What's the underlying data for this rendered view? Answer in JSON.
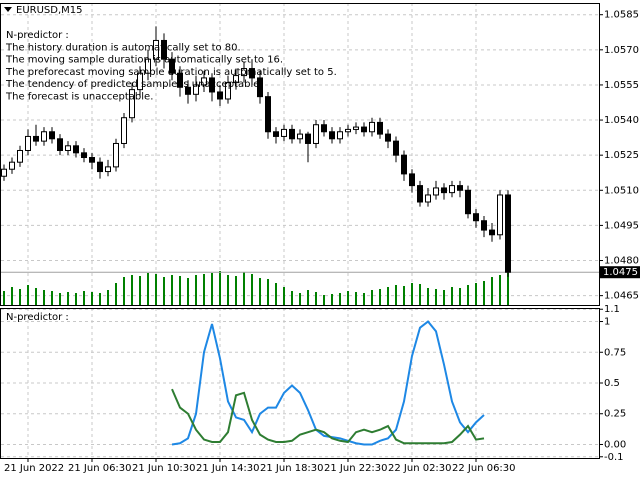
{
  "chart_data": [
    {
      "type": "candlestick",
      "title": "EURUSD,M15",
      "annotations": [
        "N-predictor :",
        "The history duration is automatically set to 80.",
        "The moving sample duration is automatically set to 16.",
        "The preforecast moving sample duration is automatically set to 5.",
        "The tendency of predicted sample is unacceptable.",
        "The forecast is unacceptable."
      ],
      "categories": [
        null,
        null,
        null,
        "21 Jun 2022",
        null,
        null,
        null,
        null,
        null,
        null,
        null,
        "21 Jun 06:30",
        null,
        null,
        null,
        null,
        null,
        null,
        null,
        "21 Jun 10:30",
        null,
        null,
        null,
        null,
        null,
        null,
        null,
        "21 Jun 14:30",
        null,
        null,
        null,
        null,
        null,
        null,
        null,
        "21 Jun 18:30",
        null,
        null,
        null,
        null,
        null,
        null,
        null,
        "21 Jun 22:30",
        null,
        null,
        null,
        null,
        null,
        null,
        null,
        "22 Jun 02:30",
        null,
        null,
        null,
        null,
        null,
        null,
        null,
        "22 Jun 06:30",
        null,
        null,
        null,
        null
      ],
      "open": [
        1.0516,
        1.0519,
        1.0522,
        1.0527,
        1.0533,
        1.0531,
        1.0535,
        1.0532,
        1.0527,
        1.0529,
        1.0526,
        1.0524,
        1.0522,
        1.0518,
        1.052,
        1.053,
        1.0541,
        1.0553,
        1.056,
        1.0566,
        1.0574,
        1.0566,
        1.056,
        1.0554,
        1.0551,
        1.0555,
        1.0558,
        1.0552,
        1.0549,
        1.0556,
        1.0559,
        1.0562,
        1.0558,
        1.055,
        1.0535,
        1.0533,
        1.0536,
        1.0532,
        1.0534,
        1.053,
        1.0538,
        1.0535,
        1.0532,
        1.0535,
        1.0536,
        1.0537,
        1.0535,
        1.0539,
        1.0534,
        1.0531,
        1.0525,
        1.0517,
        1.0512,
        1.0505,
        1.0508,
        1.0511,
        1.0509,
        1.0512,
        1.051,
        1.05,
        1.0497,
        1.0493,
        1.0491,
        1.0508
      ],
      "high": [
        1.0521,
        1.0524,
        1.0529,
        1.0536,
        1.0538,
        1.0537,
        1.0537,
        1.0534,
        1.0531,
        1.0531,
        1.0528,
        1.0526,
        1.0524,
        1.0523,
        1.0532,
        1.0543,
        1.0556,
        1.0563,
        1.057,
        1.058,
        1.0577,
        1.0569,
        1.0563,
        1.0557,
        1.0559,
        1.0561,
        1.056,
        1.0555,
        1.0559,
        1.0562,
        1.0565,
        1.0566,
        1.0561,
        1.0552,
        1.0537,
        1.0538,
        1.0538,
        1.0536,
        1.0535,
        1.054,
        1.054,
        1.0537,
        1.0537,
        1.0538,
        1.0539,
        1.0539,
        1.0541,
        1.0541,
        1.0536,
        1.0533,
        1.0527,
        1.0519,
        1.0514,
        1.0511,
        1.0514,
        1.0513,
        1.0514,
        1.0514,
        1.0512,
        1.0502,
        1.0499,
        1.0496,
        1.051,
        1.051
      ],
      "low": [
        1.0514,
        1.0517,
        1.052,
        1.0525,
        1.0529,
        1.0529,
        1.053,
        1.0525,
        1.0525,
        1.0524,
        1.0522,
        1.0519,
        1.0515,
        1.0516,
        1.0518,
        1.0528,
        1.0539,
        1.055,
        1.0557,
        1.0563,
        1.0562,
        1.0557,
        1.055,
        1.0547,
        1.0548,
        1.0552,
        1.0548,
        1.0546,
        1.0547,
        1.0553,
        1.0556,
        1.0555,
        1.0547,
        1.0532,
        1.053,
        1.0531,
        1.053,
        1.053,
        1.0522,
        1.0528,
        1.0533,
        1.053,
        1.053,
        1.0533,
        1.0534,
        1.0533,
        1.0533,
        1.0532,
        1.0528,
        1.0522,
        1.0514,
        1.0509,
        1.0503,
        1.0503,
        1.0506,
        1.0506,
        1.0507,
        1.0507,
        1.0498,
        1.0494,
        1.049,
        1.0488,
        1.0489,
        1.0473
      ],
      "close": [
        1.0519,
        1.0522,
        1.0527,
        1.0533,
        1.0531,
        1.0535,
        1.0532,
        1.0527,
        1.0529,
        1.0526,
        1.0524,
        1.0522,
        1.0518,
        1.052,
        1.053,
        1.0541,
        1.0553,
        1.056,
        1.0566,
        1.0574,
        1.0566,
        1.056,
        1.0554,
        1.0551,
        1.0555,
        1.0558,
        1.0552,
        1.0549,
        1.0556,
        1.0559,
        1.0562,
        1.0558,
        1.055,
        1.0535,
        1.0533,
        1.0536,
        1.0532,
        1.0534,
        1.053,
        1.0538,
        1.0535,
        1.0532,
        1.0535,
        1.0536,
        1.0537,
        1.0535,
        1.0539,
        1.0534,
        1.0531,
        1.0525,
        1.0517,
        1.0512,
        1.0505,
        1.0508,
        1.0511,
        1.0509,
        1.0512,
        1.051,
        1.05,
        1.0497,
        1.0493,
        1.0491,
        1.0508,
        1.0475
      ],
      "volumes": [
        14,
        18,
        16,
        20,
        17,
        15,
        14,
        12,
        13,
        12,
        14,
        13,
        12,
        15,
        22,
        28,
        30,
        29,
        32,
        31,
        28,
        30,
        29,
        27,
        30,
        31,
        32,
        34,
        30,
        29,
        33,
        31,
        27,
        26,
        22,
        18,
        14,
        12,
        15,
        13,
        10,
        11,
        12,
        14,
        13,
        12,
        15,
        16,
        18,
        20,
        19,
        22,
        21,
        17,
        16,
        15,
        18,
        17,
        20,
        22,
        24,
        28,
        30,
        36
      ],
      "volume_color": "#008000",
      "current_price": 1.0475,
      "ylim": [
        1.0461,
        1.059
      ],
      "yticks": [
        1.0585,
        {
          "value": 1.057,
          "label": "1.0570"
        },
        1.0555,
        {
          "value": 1.054,
          "label": "1.0540"
        },
        1.0525,
        {
          "value": 1.051,
          "label": "1.0510"
        },
        1.0495,
        {
          "value": 1.048,
          "label": "1.0480"
        },
        1.0465
      ],
      "grid": true
    },
    {
      "type": "line",
      "title": "N-predictor :",
      "series": [
        {
          "color": "#1e88e5",
          "values": [
            null,
            null,
            null,
            null,
            null,
            null,
            null,
            null,
            null,
            null,
            null,
            null,
            null,
            null,
            null,
            null,
            null,
            null,
            null,
            null,
            null,
            0.0,
            0.01,
            0.05,
            0.25,
            0.75,
            0.98,
            0.7,
            0.35,
            0.22,
            0.2,
            0.1,
            0.25,
            0.3,
            0.3,
            0.42,
            0.48,
            0.42,
            0.28,
            0.12,
            0.07,
            0.06,
            0.05,
            0.03,
            0.01,
            0.0,
            0.0,
            0.03,
            0.05,
            0.12,
            0.35,
            0.72,
            0.95,
            1.0,
            0.92,
            0.65,
            0.35,
            0.18,
            0.1,
            0.18,
            0.24,
            null,
            null,
            null
          ]
        },
        {
          "color": "#2e7d32",
          "values": [
            null,
            null,
            null,
            null,
            null,
            null,
            null,
            null,
            null,
            null,
            null,
            null,
            null,
            null,
            null,
            null,
            null,
            null,
            null,
            null,
            null,
            0.45,
            0.3,
            0.25,
            0.12,
            0.04,
            0.02,
            0.02,
            0.1,
            0.4,
            0.42,
            0.2,
            0.08,
            0.04,
            0.02,
            0.02,
            0.03,
            0.08,
            0.1,
            0.12,
            0.1,
            0.05,
            0.03,
            0.02,
            0.1,
            0.12,
            0.1,
            0.12,
            0.15,
            0.04,
            0.01,
            0.01,
            0.01,
            0.01,
            0.01,
            0.01,
            0.02,
            0.08,
            0.15,
            0.04,
            0.05,
            null,
            null,
            null
          ]
        }
      ],
      "ylim": [
        -0.11,
        1.11
      ],
      "yticks": [
        1.1,
        1,
        0.75,
        0.5,
        0.25,
        {
          "value": 0,
          "label": "0.00"
        },
        -0.1
      ],
      "grid": true
    }
  ]
}
